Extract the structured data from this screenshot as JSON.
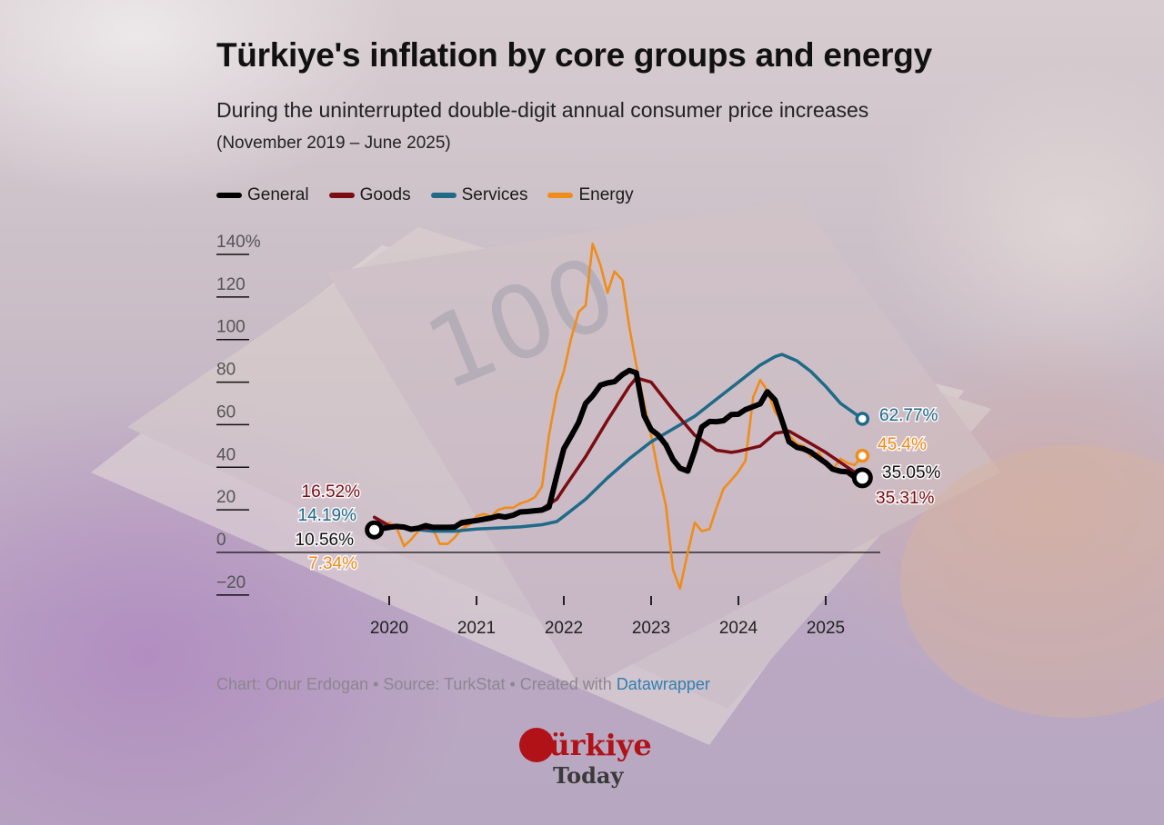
{
  "header": {
    "title": "Türkiye's inflation by core groups and energy",
    "subtitle": "During the uninterrupted double-digit annual consumer price increases",
    "date_range": "(November 2019 – June 2025)"
  },
  "footer": {
    "credit_prefix": "Chart: Onur Erdogan • Source: TurkStat • Created with ",
    "credit_link": "Datawrapper"
  },
  "logo": {
    "line1": "Türkiye",
    "line2": "Today"
  },
  "colors": {
    "general": "#000000",
    "goods": "#7a0c12",
    "services": "#1f6a88",
    "energy": "#f08c1a"
  },
  "chart_data": {
    "type": "line",
    "x_unit": "year",
    "x_start": "2019-11",
    "x_end": "2025-06",
    "xlim": [
      2019.7,
      2025.62
    ],
    "ylim": [
      -20,
      140
    ],
    "y_ticks": [
      -20,
      0,
      20,
      40,
      60,
      80,
      100,
      120,
      140
    ],
    "y_tick_labels": [
      "−20",
      "0",
      "20",
      "40",
      "60",
      "80",
      "100",
      "120",
      "140%"
    ],
    "x_ticks": [
      2020,
      2021,
      2022,
      2023,
      2024,
      2025
    ],
    "x_tick_labels": [
      "2020",
      "2021",
      "2022",
      "2023",
      "2024",
      "2025"
    ],
    "legend_position": "top-left",
    "series": [
      {
        "key": "general",
        "name": "General",
        "x": [
          2019.83,
          2020.0,
          2020.08,
          2020.17,
          2020.25,
          2020.33,
          2020.42,
          2020.5,
          2020.58,
          2020.67,
          2020.75,
          2020.83,
          2020.92,
          2021.0,
          2021.08,
          2021.17,
          2021.25,
          2021.33,
          2021.42,
          2021.5,
          2021.58,
          2021.67,
          2021.75,
          2021.83,
          2021.92,
          2022.0,
          2022.08,
          2022.17,
          2022.25,
          2022.33,
          2022.42,
          2022.5,
          2022.58,
          2022.67,
          2022.75,
          2022.83,
          2022.92,
          2023.0,
          2023.08,
          2023.17,
          2023.25,
          2023.33,
          2023.42,
          2023.5,
          2023.58,
          2023.67,
          2023.75,
          2023.83,
          2023.92,
          2024.0,
          2024.08,
          2024.17,
          2024.25,
          2024.33,
          2024.42,
          2024.5,
          2024.58,
          2024.67,
          2024.75,
          2024.83,
          2024.92,
          2025.0,
          2025.08,
          2025.17,
          2025.25,
          2025.33,
          2025.42
        ],
        "values": [
          10.56,
          11.8,
          12.2,
          11.9,
          10.9,
          11.4,
          12.6,
          11.8,
          11.8,
          11.8,
          11.9,
          14.0,
          14.6,
          15.0,
          15.6,
          16.2,
          17.1,
          16.6,
          17.5,
          19.0,
          19.2,
          19.6,
          19.9,
          21.3,
          36.1,
          48.7,
          54.4,
          61.1,
          70.0,
          73.5,
          78.6,
          79.6,
          80.2,
          83.5,
          85.5,
          84.4,
          64.3,
          57.7,
          55.2,
          50.5,
          43.7,
          39.6,
          38.2,
          47.8,
          58.9,
          61.5,
          61.4,
          61.9,
          64.8,
          64.9,
          67.1,
          68.5,
          69.8,
          75.5,
          71.6,
          61.8,
          51.97,
          49.4,
          48.6,
          47.1,
          44.4,
          42.1,
          39.1,
          38.1,
          37.9,
          35.4,
          35.05
        ]
      },
      {
        "key": "goods",
        "name": "Goods",
        "x": [
          2019.83,
          2020.0,
          2020.25,
          2020.5,
          2020.75,
          2021.0,
          2021.25,
          2021.5,
          2021.75,
          2021.92,
          2022.0,
          2022.25,
          2022.5,
          2022.75,
          2022.83,
          2023.0,
          2023.25,
          2023.5,
          2023.75,
          2023.92,
          2024.0,
          2024.25,
          2024.42,
          2024.58,
          2024.75,
          2025.0,
          2025.25,
          2025.42
        ],
        "values": [
          16.52,
          12.5,
          11.0,
          11.5,
          12.5,
          14.5,
          16.5,
          18.5,
          20.5,
          25.0,
          30.0,
          45.0,
          62.0,
          78.0,
          82.0,
          80.0,
          67.0,
          55.0,
          48.0,
          47.0,
          47.5,
          50.0,
          56.0,
          57.0,
          53.0,
          47.0,
          40.0,
          35.31
        ]
      },
      {
        "key": "services",
        "name": "Services",
        "x": [
          2019.83,
          2020.0,
          2020.25,
          2020.5,
          2020.75,
          2021.0,
          2021.25,
          2021.5,
          2021.75,
          2021.92,
          2022.0,
          2022.25,
          2022.5,
          2022.75,
          2023.0,
          2023.25,
          2023.5,
          2023.75,
          2024.0,
          2024.25,
          2024.42,
          2024.5,
          2024.67,
          2024.83,
          2025.0,
          2025.17,
          2025.42
        ],
        "values": [
          14.19,
          12.5,
          11.0,
          10.0,
          10.0,
          11.0,
          11.5,
          12.0,
          13.0,
          14.5,
          17.0,
          25.0,
          35.0,
          44.0,
          52.0,
          58.0,
          64.0,
          72.0,
          80.0,
          88.0,
          92.0,
          93.0,
          90.0,
          85.0,
          78.0,
          70.0,
          62.77
        ]
      },
      {
        "key": "energy",
        "name": "Energy",
        "x": [
          2019.83,
          2019.92,
          2020.0,
          2020.08,
          2020.17,
          2020.25,
          2020.33,
          2020.42,
          2020.5,
          2020.58,
          2020.67,
          2020.75,
          2020.83,
          2020.92,
          2021.0,
          2021.08,
          2021.17,
          2021.25,
          2021.33,
          2021.42,
          2021.5,
          2021.58,
          2021.67,
          2021.75,
          2021.83,
          2021.92,
          2022.0,
          2022.08,
          2022.17,
          2022.25,
          2022.33,
          2022.42,
          2022.5,
          2022.58,
          2022.67,
          2022.75,
          2022.83,
          2022.92,
          2023.0,
          2023.08,
          2023.17,
          2023.25,
          2023.33,
          2023.42,
          2023.5,
          2023.58,
          2023.67,
          2023.75,
          2023.83,
          2023.92,
          2024.0,
          2024.08,
          2024.17,
          2024.25,
          2024.33,
          2024.42,
          2024.5,
          2024.58,
          2024.67,
          2024.75,
          2024.83,
          2024.92,
          2025.0,
          2025.08,
          2025.17,
          2025.25,
          2025.33,
          2025.42
        ],
        "values": [
          7.34,
          10.0,
          14.0,
          12.0,
          3.0,
          6.0,
          10.0,
          12.0,
          11.0,
          4.0,
          4.0,
          7.0,
          11.0,
          13.0,
          17.0,
          18.0,
          17.0,
          20.0,
          21.0,
          21.0,
          23.0,
          24.0,
          26.0,
          31.0,
          55.0,
          75.0,
          85.0,
          100.0,
          113.0,
          116.0,
          145.0,
          135.0,
          122.0,
          132.0,
          128.0,
          106.0,
          88.0,
          70.0,
          55.0,
          38.0,
          22.0,
          -8.0,
          -17.0,
          0.0,
          14.0,
          10.0,
          11.0,
          21.0,
          30.0,
          34.0,
          38.0,
          43.0,
          73.0,
          81.0,
          76.0,
          66.0,
          62.0,
          55.0,
          51.0,
          50.0,
          45.0,
          47.0,
          42.0,
          39.0,
          44.0,
          42.0,
          41.0,
          45.4
        ]
      }
    ],
    "annotations": [
      {
        "series": "goods",
        "text": "16.52%"
      },
      {
        "series": "services",
        "text": "14.19%"
      },
      {
        "series": "general",
        "text": "10.56%"
      },
      {
        "series": "energy",
        "text": "7.34%"
      },
      {
        "series": "services",
        "text": "62.77%"
      },
      {
        "series": "energy",
        "text": "45.4%"
      },
      {
        "series": "general",
        "text": "35.05%"
      },
      {
        "series": "goods",
        "text": "35.31%"
      }
    ]
  }
}
